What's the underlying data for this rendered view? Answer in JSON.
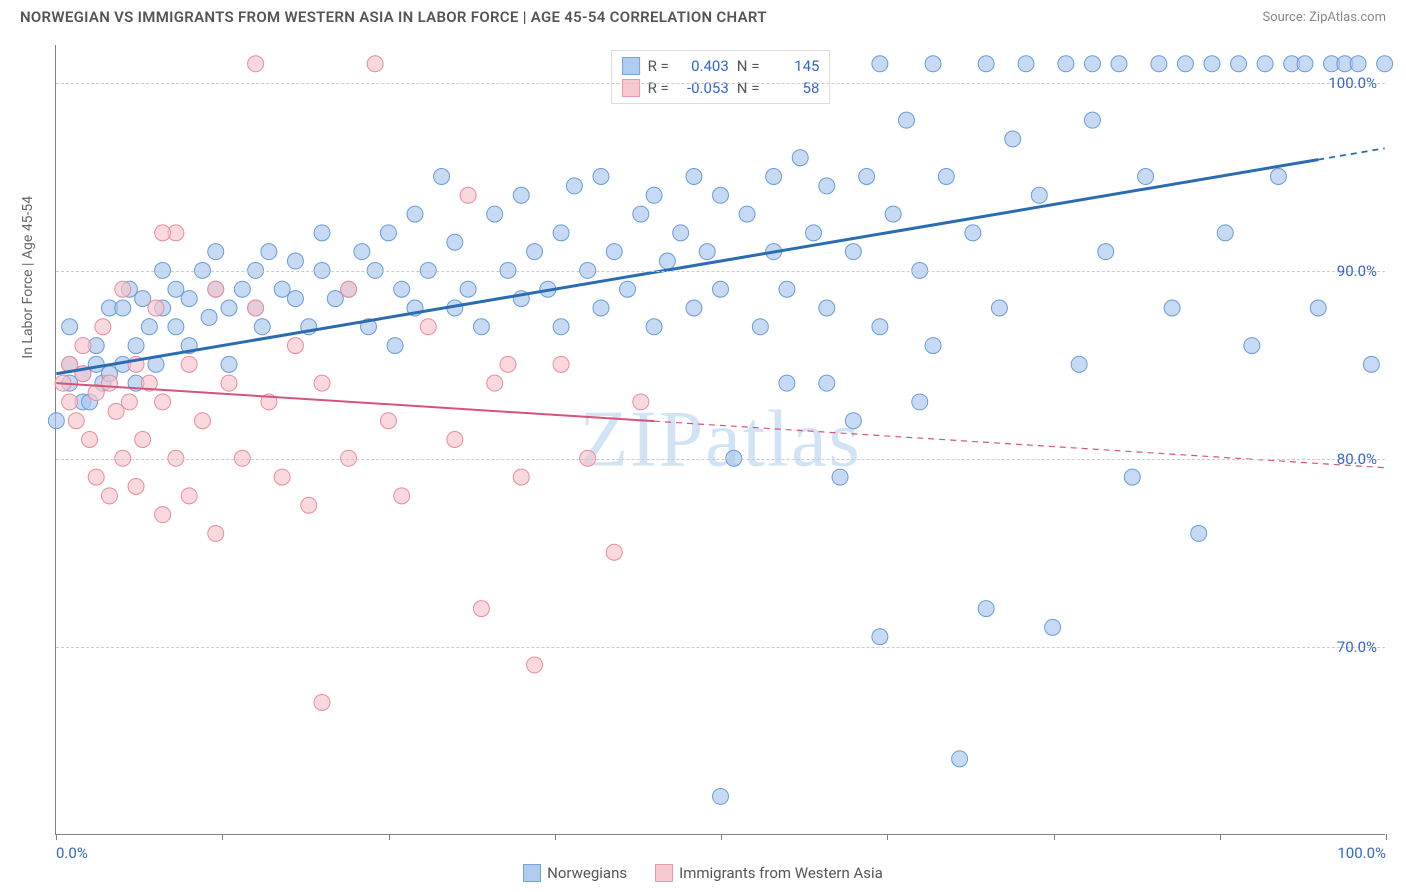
{
  "title": "NORWEGIAN VS IMMIGRANTS FROM WESTERN ASIA IN LABOR FORCE | AGE 45-54 CORRELATION CHART",
  "source": "Source: ZipAtlas.com",
  "watermark": "ZIPatlas",
  "y_axis_label": "In Labor Force | Age 45-54",
  "chart": {
    "type": "scatter",
    "background_color": "#ffffff",
    "grid_color": "#cccccc",
    "axis_color": "#808080",
    "tick_label_color": "#3366cc",
    "xlim": [
      0,
      100
    ],
    "ylim": [
      60,
      102
    ],
    "x_tick_positions": [
      0,
      12.5,
      25,
      37.5,
      50,
      62.5,
      75,
      87.5,
      100
    ],
    "x_tick_labels": {
      "0": "0.0%",
      "100": "100.0%"
    },
    "y_ticks": [
      {
        "v": 70,
        "label": "70.0%"
      },
      {
        "v": 80,
        "label": "80.0%"
      },
      {
        "v": 90,
        "label": "90.0%"
      },
      {
        "v": 100,
        "label": "100.0%"
      }
    ],
    "series": [
      {
        "name": "Norwegians",
        "marker_fill": "#a7c6ed",
        "marker_stroke": "#6a9bd8",
        "marker_opacity": 0.65,
        "marker_radius": 8,
        "line_color": "#2b6cb0",
        "line_width": 3,
        "stats": {
          "R": "0.403",
          "N": "145"
        },
        "regression": {
          "x1": 0,
          "y1": 84.5,
          "x2": 100,
          "y2": 96.5,
          "solid_until_x": 95
        },
        "points": [
          [
            0,
            82
          ],
          [
            1,
            84
          ],
          [
            1,
            85
          ],
          [
            1,
            87
          ],
          [
            2,
            83
          ],
          [
            2,
            84.5
          ],
          [
            2.5,
            83
          ],
          [
            3,
            85
          ],
          [
            3,
            86
          ],
          [
            3.5,
            84
          ],
          [
            4,
            88
          ],
          [
            4,
            84.5
          ],
          [
            5,
            85
          ],
          [
            5,
            88
          ],
          [
            5.5,
            89
          ],
          [
            6,
            84
          ],
          [
            6,
            86
          ],
          [
            6.5,
            88.5
          ],
          [
            7,
            87
          ],
          [
            7.5,
            85
          ],
          [
            8,
            88
          ],
          [
            8,
            90
          ],
          [
            9,
            87
          ],
          [
            9,
            89
          ],
          [
            10,
            88.5
          ],
          [
            10,
            86
          ],
          [
            11,
            90
          ],
          [
            11.5,
            87.5
          ],
          [
            12,
            89
          ],
          [
            12,
            91
          ],
          [
            13,
            88
          ],
          [
            13,
            85
          ],
          [
            14,
            89
          ],
          [
            15,
            90
          ],
          [
            15,
            88
          ],
          [
            15.5,
            87
          ],
          [
            16,
            91
          ],
          [
            17,
            89
          ],
          [
            18,
            88.5
          ],
          [
            18,
            90.5
          ],
          [
            19,
            87
          ],
          [
            20,
            90
          ],
          [
            20,
            92
          ],
          [
            21,
            88.5
          ],
          [
            22,
            89
          ],
          [
            23,
            91
          ],
          [
            23.5,
            87
          ],
          [
            24,
            90
          ],
          [
            25,
            92
          ],
          [
            25.5,
            86
          ],
          [
            26,
            89
          ],
          [
            27,
            93
          ],
          [
            27,
            88
          ],
          [
            28,
            90
          ],
          [
            29,
            95
          ],
          [
            30,
            88
          ],
          [
            30,
            91.5
          ],
          [
            31,
            89
          ],
          [
            32,
            87
          ],
          [
            33,
            93
          ],
          [
            34,
            90
          ],
          [
            35,
            88.5
          ],
          [
            35,
            94
          ],
          [
            36,
            91
          ],
          [
            37,
            89
          ],
          [
            38,
            92
          ],
          [
            38,
            87
          ],
          [
            39,
            94.5
          ],
          [
            40,
            90
          ],
          [
            41,
            88
          ],
          [
            41,
            95
          ],
          [
            42,
            91
          ],
          [
            43,
            89
          ],
          [
            44,
            93
          ],
          [
            45,
            87
          ],
          [
            45,
            94
          ],
          [
            46,
            90.5
          ],
          [
            47,
            92
          ],
          [
            48,
            88
          ],
          [
            48,
            95
          ],
          [
            49,
            91
          ],
          [
            50,
            89
          ],
          [
            50,
            94
          ],
          [
            51,
            80
          ],
          [
            52,
            93
          ],
          [
            53,
            87
          ],
          [
            54,
            95
          ],
          [
            54,
            91
          ],
          [
            55,
            89
          ],
          [
            56,
            96
          ],
          [
            57,
            92
          ],
          [
            58,
            88
          ],
          [
            58,
            94.5
          ],
          [
            59,
            79
          ],
          [
            60,
            91
          ],
          [
            61,
            95
          ],
          [
            62,
            87
          ],
          [
            62,
            70.5
          ],
          [
            63,
            93
          ],
          [
            64,
            98
          ],
          [
            65,
            90
          ],
          [
            66,
            86
          ],
          [
            67,
            95
          ],
          [
            68,
            64
          ],
          [
            69,
            92
          ],
          [
            70,
            72
          ],
          [
            70,
            101
          ],
          [
            71,
            88
          ],
          [
            72,
            97
          ],
          [
            73,
            101
          ],
          [
            74,
            94
          ],
          [
            75,
            71
          ],
          [
            76,
            101
          ],
          [
            77,
            85
          ],
          [
            78,
            98
          ],
          [
            78,
            101
          ],
          [
            79,
            91
          ],
          [
            80,
            101
          ],
          [
            81,
            79
          ],
          [
            82,
            95
          ],
          [
            83,
            101
          ],
          [
            84,
            88
          ],
          [
            85,
            101
          ],
          [
            86,
            76
          ],
          [
            87,
            101
          ],
          [
            88,
            92
          ],
          [
            89,
            101
          ],
          [
            90,
            86
          ],
          [
            91,
            101
          ],
          [
            92,
            95
          ],
          [
            93,
            101
          ],
          [
            94,
            101
          ],
          [
            95,
            88
          ],
          [
            96,
            101
          ],
          [
            97,
            101
          ],
          [
            98,
            101
          ],
          [
            99,
            85
          ],
          [
            100,
            101
          ],
          [
            62,
            101
          ],
          [
            66,
            101
          ],
          [
            58,
            84
          ],
          [
            60,
            82
          ],
          [
            65,
            83
          ],
          [
            55,
            84
          ],
          [
            50,
            62
          ]
        ]
      },
      {
        "name": "Immigrants from Western Asia",
        "marker_fill": "#f6c4cd",
        "marker_stroke": "#e98ba0",
        "marker_opacity": 0.65,
        "marker_radius": 8,
        "line_color": "#d6537a",
        "line_width": 2,
        "stats": {
          "R": "-0.053",
          "N": "58"
        },
        "regression": {
          "x1": 0,
          "y1": 84.0,
          "x2": 100,
          "y2": 79.5,
          "solid_until_x": 45
        },
        "points": [
          [
            0.5,
            84
          ],
          [
            1,
            83
          ],
          [
            1,
            85
          ],
          [
            1.5,
            82
          ],
          [
            2,
            84.5
          ],
          [
            2,
            86
          ],
          [
            2.5,
            81
          ],
          [
            3,
            83.5
          ],
          [
            3,
            79
          ],
          [
            3.5,
            87
          ],
          [
            4,
            84
          ],
          [
            4,
            78
          ],
          [
            4.5,
            82.5
          ],
          [
            5,
            89
          ],
          [
            5,
            80
          ],
          [
            5.5,
            83
          ],
          [
            6,
            78.5
          ],
          [
            6,
            85
          ],
          [
            6.5,
            81
          ],
          [
            7,
            84
          ],
          [
            7.5,
            88
          ],
          [
            8,
            77
          ],
          [
            8,
            83
          ],
          [
            9,
            80
          ],
          [
            9,
            92
          ],
          [
            10,
            85
          ],
          [
            10,
            78
          ],
          [
            11,
            82
          ],
          [
            12,
            89
          ],
          [
            12,
            76
          ],
          [
            13,
            84
          ],
          [
            14,
            80
          ],
          [
            15,
            101
          ],
          [
            15,
            88
          ],
          [
            16,
            83
          ],
          [
            17,
            79
          ],
          [
            18,
            86
          ],
          [
            19,
            77.5
          ],
          [
            20,
            67
          ],
          [
            20,
            84
          ],
          [
            22,
            80
          ],
          [
            22,
            89
          ],
          [
            24,
            101
          ],
          [
            25,
            82
          ],
          [
            26,
            78
          ],
          [
            28,
            87
          ],
          [
            30,
            81
          ],
          [
            31,
            94
          ],
          [
            32,
            72
          ],
          [
            33,
            84
          ],
          [
            35,
            79
          ],
          [
            36,
            69
          ],
          [
            38,
            85
          ],
          [
            40,
            80
          ],
          [
            42,
            75
          ],
          [
            44,
            83
          ],
          [
            34,
            85
          ],
          [
            8,
            92
          ]
        ]
      }
    ],
    "legend_swatch": {
      "norwegians": {
        "fill": "#a7c6ed",
        "stroke": "#6a9bd8"
      },
      "immigrants": {
        "fill": "#f6c4cd",
        "stroke": "#e98ba0"
      }
    }
  },
  "legend_labels": {
    "norwegians": "Norwegians",
    "immigrants": "Immigrants from Western Asia"
  },
  "stats_labels": {
    "R": "R =",
    "N": "N ="
  }
}
